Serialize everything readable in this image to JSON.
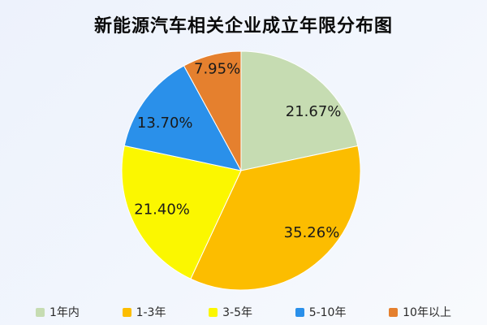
{
  "chart_data": {
    "type": "pie",
    "title": "新能源汽车相关企业成立年限分布图",
    "start_angle": "top",
    "direction": "clockwise",
    "legend_position": "bottom",
    "label_placement": "inside",
    "label_color": "#1a1a1a",
    "slice_border_color": "#ffffff",
    "background_gradient": [
      "#edf2fc",
      "#f8fafd"
    ],
    "slices": [
      {
        "label": "1年内",
        "value": 21.67,
        "display": "21.67%",
        "color": "#c6dcb2"
      },
      {
        "label": "1-3年",
        "value": 35.26,
        "display": "35.26%",
        "color": "#fcbd00"
      },
      {
        "label": "3-5年",
        "value": 21.4,
        "display": "21.40%",
        "color": "#fbf700"
      },
      {
        "label": "5-10年",
        "value": 13.7,
        "display": "13.70%",
        "color": "#2a90ea"
      },
      {
        "label": "10年以上",
        "value": 7.95,
        "display": "7.95%",
        "color": "#e5802e"
      }
    ]
  }
}
